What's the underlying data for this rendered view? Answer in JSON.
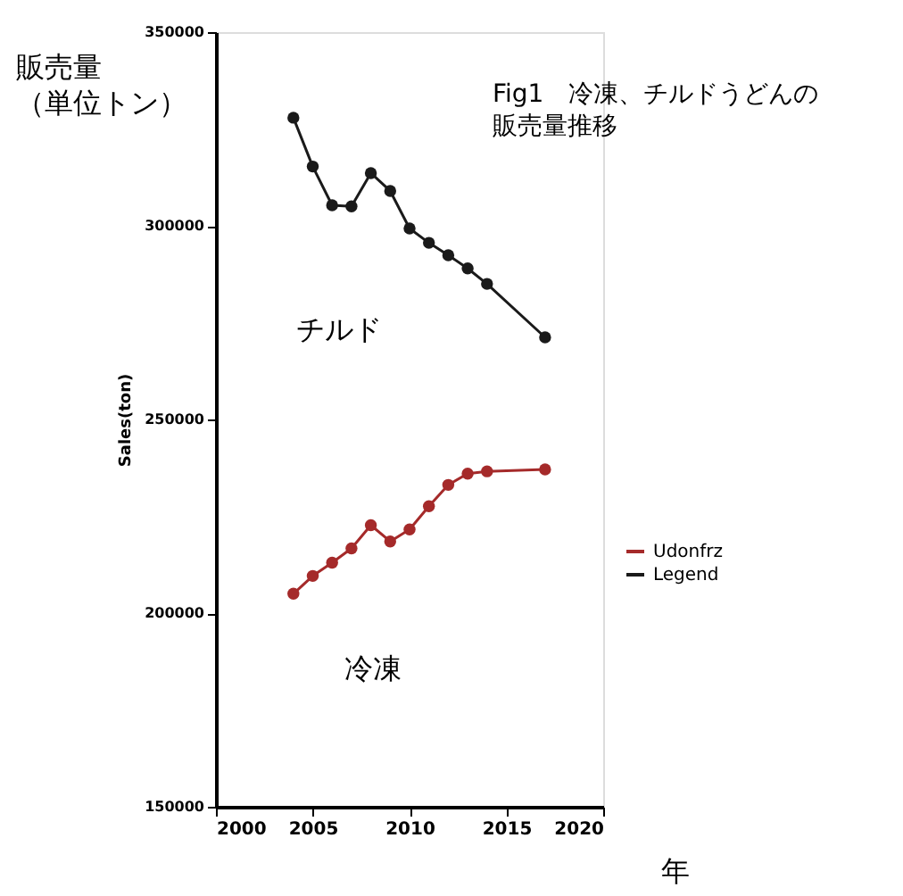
{
  "chart_data": {
    "type": "line",
    "title": "Fig1　冷凍、チルドうどんの販売量推移",
    "xlabel": "年",
    "ylabel": "Sales(ton)",
    "x": [
      2004,
      2005,
      2006,
      2007,
      2008,
      2009,
      2010,
      2011,
      2012,
      2013,
      2014,
      2017
    ],
    "series": [
      {
        "name": "Udonfrz",
        "color": "#a52a2a",
        "values": [
          205000,
          209600,
          213000,
          216700,
          222700,
          218500,
          221600,
          227600,
          233100,
          236000,
          236600,
          237100
        ]
      },
      {
        "name": "Legend",
        "color": "#1a1a1a",
        "values": [
          327900,
          315300,
          305300,
          305000,
          313600,
          309000,
          299300,
          295600,
          292400,
          289000,
          285000,
          271200
        ]
      }
    ],
    "xlim": [
      2000,
      2020
    ],
    "xticks": [
      2000,
      2005,
      2010,
      2015,
      2020
    ],
    "ylim": [
      150000,
      350000
    ],
    "yticks": [
      150000,
      200000,
      250000,
      300000,
      350000
    ],
    "annotations": [
      "販売量（単位トン）",
      "チルド",
      "冷凍"
    ],
    "marker": "circle",
    "line_style": "solid",
    "grid": false,
    "legend": "right"
  }
}
